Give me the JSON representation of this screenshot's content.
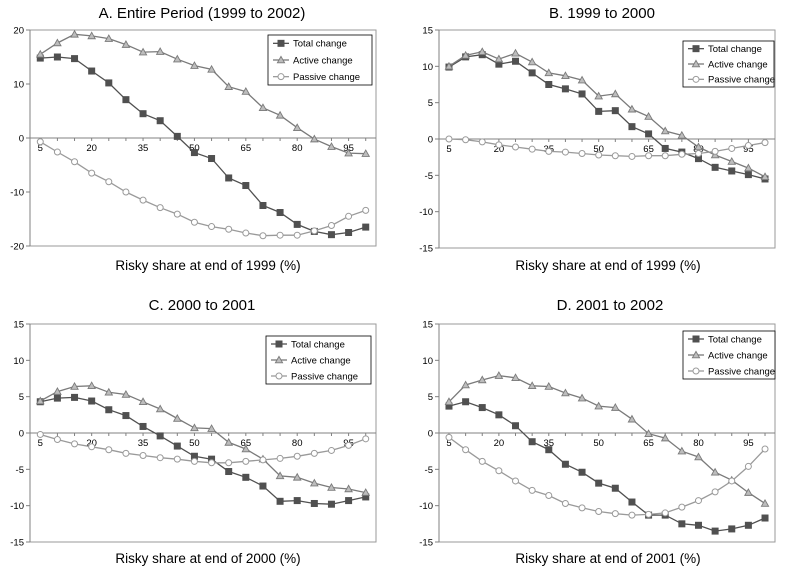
{
  "colors": {
    "total": "#505050",
    "active": "#7a7a7a",
    "passive": "#9a9a9a",
    "axis": "#808080",
    "plot_border": "#9a9a9a"
  },
  "legend_labels": [
    "Total change",
    "Active change",
    "Passive change"
  ],
  "chart_data": [
    {
      "type": "line",
      "title": "A. Entire Period (1999 to 2002)",
      "xlabel": "Risky share at end of 1999 (%)",
      "ylabel": "",
      "ylim": [
        -20,
        20
      ],
      "yticks": [
        -20,
        -10,
        0,
        10,
        20
      ],
      "xticks": [
        5,
        20,
        35,
        50,
        65,
        80,
        95
      ],
      "grid": false,
      "legend_position": "top-right",
      "x": [
        5,
        10,
        15,
        20,
        25,
        30,
        35,
        40,
        45,
        50,
        55,
        60,
        65,
        70,
        75,
        80,
        85,
        90,
        95,
        100
      ],
      "series": [
        {
          "name": "Total change",
          "marker": "square",
          "values": [
            14.8,
            15.0,
            14.7,
            12.4,
            10.2,
            7.1,
            4.5,
            3.2,
            0.3,
            -2.7,
            -3.8,
            -7.4,
            -8.8,
            -12.5,
            -13.8,
            -16.0,
            -17.3,
            -17.9,
            -17.5,
            -16.5
          ]
        },
        {
          "name": "Active change",
          "marker": "triangle",
          "values": [
            15.5,
            17.6,
            19.2,
            18.9,
            18.4,
            17.3,
            15.9,
            16.0,
            14.6,
            13.4,
            12.7,
            9.5,
            8.6,
            5.6,
            4.2,
            1.9,
            -0.2,
            -1.6,
            -2.8,
            -2.9
          ]
        },
        {
          "name": "Passive change",
          "marker": "circle",
          "values": [
            -0.7,
            -2.6,
            -4.4,
            -6.5,
            -8.1,
            -10.0,
            -11.5,
            -12.9,
            -14.1,
            -15.6,
            -16.4,
            -16.9,
            -17.6,
            -18.1,
            -18.0,
            -18.0,
            -17.2,
            -16.2,
            -14.5,
            -13.4
          ]
        }
      ]
    },
    {
      "type": "line",
      "title": "B.   1999 to 2000",
      "xlabel": "Risky share at end of 1999 (%)",
      "ylabel": "",
      "ylim": [
        -15,
        15
      ],
      "yticks": [
        -15,
        -10,
        -5,
        0,
        5,
        10,
        15
      ],
      "xticks": [
        5,
        20,
        35,
        50,
        65,
        80,
        95
      ],
      "grid": false,
      "legend_position": "top-right",
      "x": [
        5,
        10,
        15,
        20,
        25,
        30,
        35,
        40,
        45,
        50,
        55,
        60,
        65,
        70,
        75,
        80,
        85,
        90,
        95,
        100
      ],
      "series": [
        {
          "name": "Total change",
          "marker": "square",
          "values": [
            9.9,
            11.3,
            11.6,
            10.3,
            10.7,
            9.1,
            7.5,
            6.9,
            6.2,
            3.8,
            3.9,
            1.7,
            0.7,
            -1.3,
            -1.8,
            -2.7,
            -3.9,
            -4.4,
            -4.9,
            -5.5
          ]
        },
        {
          "name": "Active change",
          "marker": "triangle",
          "values": [
            10.0,
            11.5,
            12.0,
            11.0,
            11.8,
            10.6,
            9.1,
            8.7,
            8.1,
            5.9,
            6.2,
            4.1,
            3.1,
            1.1,
            0.5,
            -1.1,
            -2.2,
            -3.1,
            -4.0,
            -5.2
          ]
        },
        {
          "name": "Passive change",
          "marker": "circle",
          "values": [
            0.0,
            -0.1,
            -0.4,
            -0.8,
            -1.1,
            -1.4,
            -1.7,
            -1.8,
            -2.0,
            -2.2,
            -2.3,
            -2.4,
            -2.3,
            -2.3,
            -2.1,
            -2.0,
            -1.7,
            -1.3,
            -0.9,
            -0.5
          ]
        }
      ]
    },
    {
      "type": "line",
      "title": "C. 2000 to 2001",
      "xlabel": "Risky share at end of 2000 (%)",
      "ylabel": "",
      "ylim": [
        -15,
        15
      ],
      "yticks": [
        -15,
        -10,
        -5,
        0,
        5,
        10,
        15
      ],
      "xticks": [
        5,
        20,
        35,
        50,
        65,
        80,
        95
      ],
      "grid": false,
      "legend_position": "top-right",
      "x": [
        5,
        10,
        15,
        20,
        25,
        30,
        35,
        40,
        45,
        50,
        55,
        60,
        65,
        70,
        75,
        80,
        85,
        90,
        95,
        100
      ],
      "series": [
        {
          "name": "Total change",
          "marker": "square",
          "values": [
            4.3,
            4.8,
            4.9,
            4.4,
            3.2,
            2.4,
            0.9,
            -0.4,
            -1.8,
            -3.2,
            -3.6,
            -5.3,
            -6.1,
            -7.3,
            -9.4,
            -9.3,
            -9.7,
            -9.8,
            -9.3,
            -8.8
          ]
        },
        {
          "name": "Active change",
          "marker": "triangle",
          "values": [
            4.4,
            5.7,
            6.4,
            6.5,
            5.6,
            5.3,
            4.3,
            3.3,
            2.0,
            0.7,
            0.6,
            -1.3,
            -2.2,
            -3.6,
            -5.9,
            -6.1,
            -6.9,
            -7.5,
            -7.7,
            -8.2
          ]
        },
        {
          "name": "Passive change",
          "marker": "circle",
          "values": [
            -0.2,
            -0.9,
            -1.5,
            -1.9,
            -2.3,
            -2.8,
            -3.1,
            -3.4,
            -3.6,
            -3.9,
            -4.1,
            -4.1,
            -3.9,
            -3.7,
            -3.5,
            -3.2,
            -2.8,
            -2.4,
            -1.7,
            -0.8
          ]
        }
      ]
    },
    {
      "type": "line",
      "title": "D. 2001 to 2002",
      "xlabel": "Risky share at end of 2001 (%)",
      "ylabel": "",
      "ylim": [
        -15,
        15
      ],
      "yticks": [
        -15,
        -10,
        -5,
        0,
        5,
        10,
        15
      ],
      "xticks": [
        5,
        20,
        35,
        50,
        65,
        80,
        95
      ],
      "grid": false,
      "legend_position": "top-right",
      "x": [
        5,
        10,
        15,
        20,
        25,
        30,
        35,
        40,
        45,
        50,
        55,
        60,
        65,
        70,
        75,
        80,
        85,
        90,
        95,
        100
      ],
      "series": [
        {
          "name": "Total change",
          "marker": "square",
          "values": [
            3.7,
            4.3,
            3.5,
            2.5,
            1.0,
            -1.2,
            -2.3,
            -4.3,
            -5.4,
            -6.9,
            -7.6,
            -9.5,
            -11.3,
            -11.3,
            -12.5,
            -12.7,
            -13.5,
            -13.2,
            -12.7,
            -11.7
          ]
        },
        {
          "name": "Active change",
          "marker": "triangle",
          "values": [
            4.3,
            6.6,
            7.3,
            7.9,
            7.6,
            6.5,
            6.4,
            5.5,
            4.8,
            3.7,
            3.5,
            1.9,
            -0.1,
            -0.7,
            -2.5,
            -3.3,
            -5.4,
            -6.5,
            -8.2,
            -9.7
          ]
        },
        {
          "name": "Passive change",
          "marker": "circle",
          "values": [
            -0.6,
            -2.3,
            -3.9,
            -5.2,
            -6.6,
            -7.9,
            -8.6,
            -9.7,
            -10.3,
            -10.8,
            -11.1,
            -11.3,
            -11.2,
            -11.0,
            -10.2,
            -9.3,
            -8.1,
            -6.6,
            -4.6,
            -2.2
          ]
        }
      ]
    }
  ]
}
